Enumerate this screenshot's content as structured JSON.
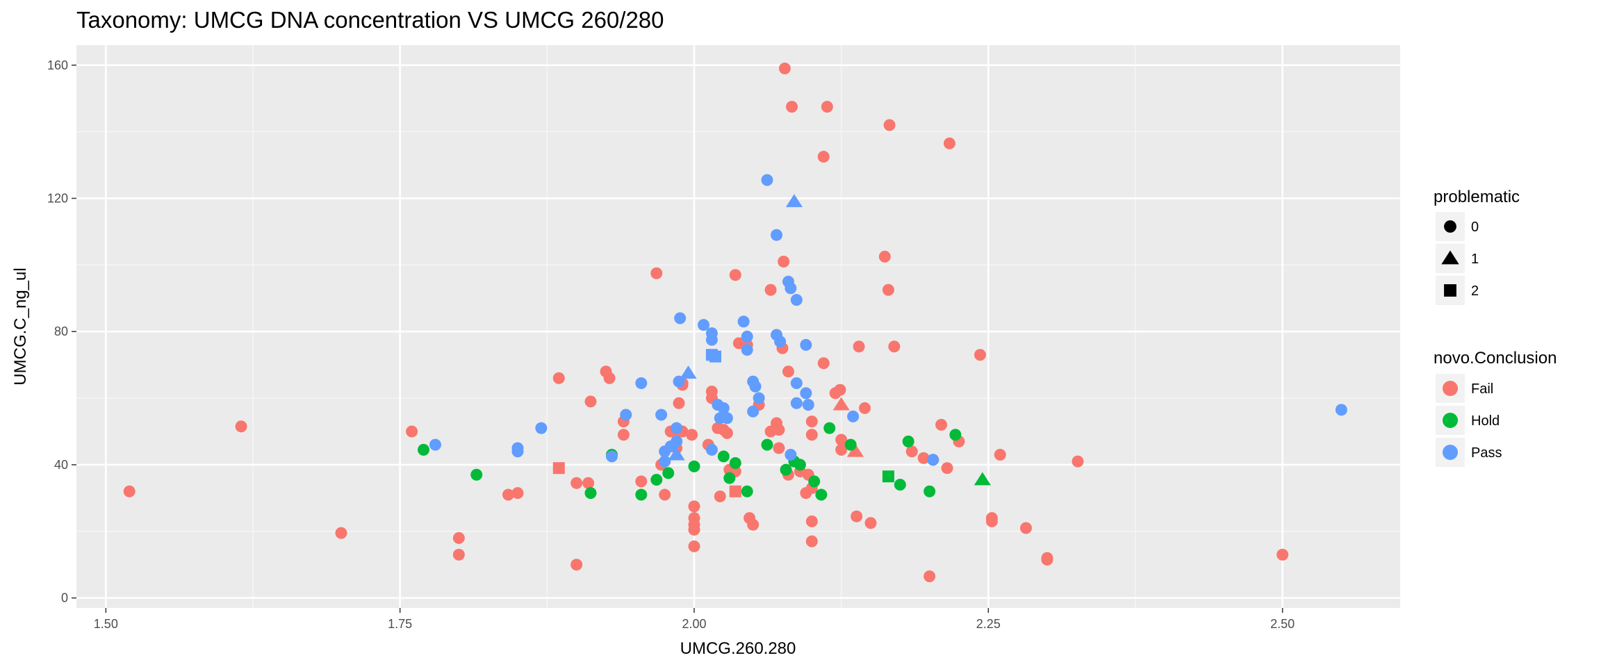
{
  "chart_data": {
    "type": "scatter",
    "title": "Taxonomy: UMCG DNA concentration VS UMCG 260/280",
    "xlabel": "UMCG.260.280",
    "ylabel": "UMCG.C_ng_ul",
    "xlim": [
      1.475,
      2.6
    ],
    "ylim": [
      -3,
      166
    ],
    "x_ticks": [
      1.5,
      1.75,
      2.0,
      2.25,
      2.5
    ],
    "x_tick_labels": [
      "1.50",
      "1.75",
      "2.00",
      "2.25",
      "2.50"
    ],
    "y_ticks": [
      0,
      40,
      80,
      120,
      160
    ],
    "y_tick_labels": [
      "0",
      "40",
      "80",
      "120",
      "160"
    ],
    "grid": true,
    "background": "#ebebeb",
    "color_by": "novo.Conclusion",
    "shape_by": "problematic",
    "legend_placement": "right",
    "legends": [
      {
        "title": "problematic",
        "entries": [
          {
            "label": "0",
            "shape": "circle"
          },
          {
            "label": "1",
            "shape": "triangle"
          },
          {
            "label": "2",
            "shape": "square"
          }
        ]
      },
      {
        "title": "novo.Conclusion",
        "entries": [
          {
            "label": "Fail",
            "color": "#f8766d"
          },
          {
            "label": "Hold",
            "color": "#00ba38"
          },
          {
            "label": "Pass",
            "color": "#619cff"
          }
        ]
      }
    ],
    "colors": {
      "Fail": "#f8766d",
      "Hold": "#00ba38",
      "Pass": "#619cff"
    },
    "series": [
      {
        "name": "Fail",
        "points": [
          [
            1.52,
            32,
            0
          ],
          [
            1.615,
            51.5,
            0
          ],
          [
            1.7,
            19.5,
            0
          ],
          [
            1.76,
            50,
            0
          ],
          [
            1.8,
            18,
            0
          ],
          [
            1.8,
            13,
            0
          ],
          [
            1.842,
            31,
            0
          ],
          [
            1.85,
            31.5,
            0
          ],
          [
            1.885,
            66,
            0
          ],
          [
            1.9,
            34.5,
            0
          ],
          [
            1.9,
            10,
            0
          ],
          [
            1.91,
            34.5,
            0
          ],
          [
            1.912,
            59,
            0
          ],
          [
            1.925,
            68,
            0
          ],
          [
            1.928,
            66,
            0
          ],
          [
            1.94,
            53,
            0
          ],
          [
            1.94,
            49,
            0
          ],
          [
            1.955,
            35,
            0
          ],
          [
            1.968,
            97.5,
            0
          ],
          [
            1.972,
            40,
            0
          ],
          [
            1.975,
            31,
            0
          ],
          [
            1.98,
            50,
            0
          ],
          [
            1.985,
            47,
            0
          ],
          [
            1.985,
            45,
            0
          ],
          [
            1.987,
            58.5,
            0
          ],
          [
            1.99,
            64,
            0
          ],
          [
            1.99,
            64.5,
            0
          ],
          [
            1.99,
            50,
            0
          ],
          [
            1.998,
            49,
            0
          ],
          [
            2.0,
            27.5,
            0
          ],
          [
            2.0,
            24,
            0
          ],
          [
            2.0,
            22,
            0
          ],
          [
            2.0,
            20.5,
            0
          ],
          [
            2.0,
            15.5,
            0
          ],
          [
            2.012,
            46,
            0
          ],
          [
            2.015,
            62,
            0
          ],
          [
            2.015,
            60,
            0
          ],
          [
            2.02,
            51,
            0
          ],
          [
            2.022,
            30.5,
            0
          ],
          [
            2.025,
            50.5,
            0
          ],
          [
            2.028,
            49.5,
            0
          ],
          [
            2.03,
            38.5,
            0
          ],
          [
            2.035,
            38,
            0
          ],
          [
            2.035,
            97,
            0
          ],
          [
            2.038,
            76.5,
            0
          ],
          [
            2.045,
            76,
            0
          ],
          [
            2.047,
            24,
            0
          ],
          [
            2.05,
            22,
            0
          ],
          [
            2.055,
            58,
            0
          ],
          [
            2.065,
            92.5,
            0
          ],
          [
            2.065,
            50,
            0
          ],
          [
            2.07,
            52.5,
            0
          ],
          [
            2.072,
            50.5,
            0
          ],
          [
            2.072,
            45,
            0
          ],
          [
            2.075,
            75,
            0
          ],
          [
            2.076,
            101,
            0
          ],
          [
            2.077,
            159,
            0
          ],
          [
            2.08,
            68,
            0
          ],
          [
            2.08,
            37,
            0
          ],
          [
            2.083,
            147.5,
            0
          ],
          [
            2.09,
            38,
            0
          ],
          [
            2.095,
            31.5,
            0
          ],
          [
            2.097,
            37,
            0
          ],
          [
            2.1,
            53,
            0
          ],
          [
            2.1,
            49,
            0
          ],
          [
            2.1,
            33,
            0
          ],
          [
            2.1,
            23,
            0
          ],
          [
            2.1,
            17,
            0
          ],
          [
            2.11,
            70.5,
            0
          ],
          [
            2.11,
            132.5,
            0
          ],
          [
            2.113,
            147.5,
            0
          ],
          [
            2.12,
            61.5,
            0
          ],
          [
            2.124,
            62.5,
            0
          ],
          [
            2.125,
            47.5,
            0
          ],
          [
            2.125,
            44.5,
            0
          ],
          [
            2.138,
            24.5,
            0
          ],
          [
            2.14,
            75.5,
            0
          ],
          [
            2.145,
            57,
            0
          ],
          [
            2.15,
            22.5,
            0
          ],
          [
            2.162,
            102.5,
            0
          ],
          [
            2.165,
            92.5,
            0
          ],
          [
            2.166,
            142,
            0
          ],
          [
            2.17,
            75.5,
            0
          ],
          [
            2.185,
            44,
            0
          ],
          [
            2.195,
            42,
            0
          ],
          [
            2.2,
            6.5,
            0
          ],
          [
            2.203,
            41.5,
            0
          ],
          [
            2.21,
            52,
            0
          ],
          [
            2.215,
            39,
            0
          ],
          [
            2.217,
            136.5,
            0
          ],
          [
            2.225,
            47,
            0
          ],
          [
            2.243,
            73,
            0
          ],
          [
            2.253,
            24,
            0
          ],
          [
            2.253,
            23,
            0
          ],
          [
            2.26,
            43,
            0
          ],
          [
            2.282,
            21,
            0
          ],
          [
            2.3,
            12,
            0
          ],
          [
            2.3,
            11.5,
            0
          ],
          [
            2.326,
            41,
            0
          ],
          [
            2.5,
            13,
            0
          ],
          [
            1.985,
            50,
            1
          ],
          [
            2.125,
            58,
            1
          ],
          [
            2.137,
            44,
            1
          ],
          [
            1.885,
            39,
            2
          ],
          [
            2.035,
            32,
            2
          ]
        ]
      },
      {
        "name": "Hold",
        "points": [
          [
            1.77,
            44.5,
            0
          ],
          [
            1.815,
            37,
            0
          ],
          [
            1.912,
            31.5,
            0
          ],
          [
            1.93,
            43,
            0
          ],
          [
            1.955,
            31,
            0
          ],
          [
            1.968,
            35.5,
            0
          ],
          [
            1.978,
            37.5,
            0
          ],
          [
            2.0,
            39.5,
            0
          ],
          [
            2.025,
            42.5,
            0
          ],
          [
            2.03,
            36,
            0
          ],
          [
            2.035,
            40.5,
            0
          ],
          [
            2.045,
            32,
            0
          ],
          [
            2.062,
            46,
            0
          ],
          [
            2.078,
            38.5,
            0
          ],
          [
            2.085,
            41,
            0
          ],
          [
            2.09,
            40,
            0
          ],
          [
            2.102,
            35,
            0
          ],
          [
            2.108,
            31,
            0
          ],
          [
            2.115,
            51,
            0
          ],
          [
            2.133,
            46,
            0
          ],
          [
            2.175,
            34,
            0
          ],
          [
            2.182,
            47,
            0
          ],
          [
            2.2,
            32,
            0
          ],
          [
            2.222,
            49,
            0
          ],
          [
            2.245,
            35.5,
            1
          ],
          [
            2.165,
            36.5,
            2
          ]
        ]
      },
      {
        "name": "Pass",
        "points": [
          [
            1.78,
            46,
            0
          ],
          [
            1.85,
            45,
            0
          ],
          [
            1.85,
            44,
            0
          ],
          [
            1.87,
            51,
            0
          ],
          [
            1.93,
            42.5,
            0
          ],
          [
            1.942,
            55,
            0
          ],
          [
            1.955,
            64.5,
            0
          ],
          [
            1.972,
            55,
            0
          ],
          [
            1.975,
            44,
            0
          ],
          [
            1.975,
            41,
            0
          ],
          [
            1.98,
            45.5,
            0
          ],
          [
            1.985,
            47,
            0
          ],
          [
            1.985,
            51,
            0
          ],
          [
            1.987,
            65,
            0
          ],
          [
            1.988,
            84,
            0
          ],
          [
            2.008,
            82,
            0
          ],
          [
            2.015,
            79.5,
            0
          ],
          [
            2.015,
            77.5,
            0
          ],
          [
            2.015,
            44.5,
            0
          ],
          [
            2.02,
            58,
            0
          ],
          [
            2.022,
            54,
            0
          ],
          [
            2.025,
            57,
            0
          ],
          [
            2.028,
            54,
            0
          ],
          [
            2.042,
            83,
            0
          ],
          [
            2.045,
            78.5,
            0
          ],
          [
            2.045,
            74.5,
            0
          ],
          [
            2.05,
            65,
            0
          ],
          [
            2.052,
            63.5,
            0
          ],
          [
            2.05,
            56,
            0
          ],
          [
            2.055,
            60,
            0
          ],
          [
            2.062,
            125.5,
            0
          ],
          [
            2.07,
            109,
            0
          ],
          [
            2.07,
            79,
            0
          ],
          [
            2.073,
            77,
            0
          ],
          [
            2.08,
            95,
            0
          ],
          [
            2.082,
            93,
            0
          ],
          [
            2.082,
            43,
            0
          ],
          [
            2.087,
            89.5,
            0
          ],
          [
            2.087,
            64.5,
            0
          ],
          [
            2.087,
            58.5,
            0
          ],
          [
            2.095,
            76,
            0
          ],
          [
            2.095,
            61.5,
            0
          ],
          [
            2.097,
            58,
            0
          ],
          [
            2.135,
            54.5,
            0
          ],
          [
            2.203,
            41.5,
            0
          ],
          [
            2.55,
            56.5,
            0
          ],
          [
            1.985,
            43,
            1
          ],
          [
            1.995,
            67.5,
            1
          ],
          [
            2.085,
            119,
            1
          ],
          [
            2.015,
            73,
            2
          ],
          [
            2.018,
            72.5,
            2
          ]
        ]
      }
    ]
  }
}
